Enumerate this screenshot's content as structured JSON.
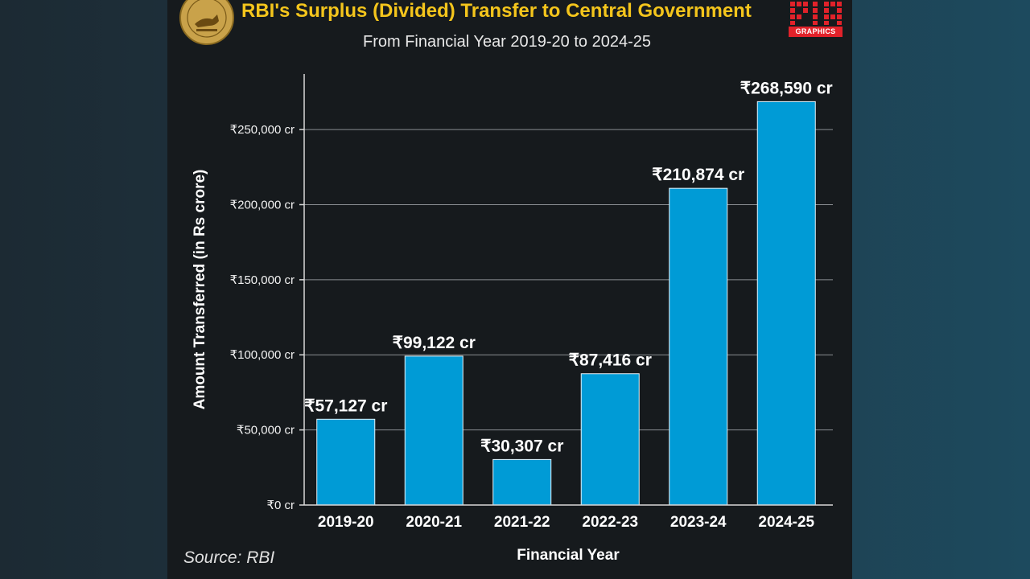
{
  "header": {
    "title": "RBI's Surplus (Divided) Transfer to Central Government",
    "subtitle": "From Financial Year 2019-20 to 2024-25",
    "logo_left": "Reserve Bank of India seal",
    "logo_right_label": "GRAPHICS"
  },
  "footer": {
    "source": "Source: RBI"
  },
  "colors": {
    "bar": "#009bd6",
    "grid": "#8a8e92",
    "title": "#f4c51c",
    "background": "#161a1d"
  },
  "chart_data": {
    "type": "bar",
    "title": "RBI's Surplus (Divided) Transfer to Central Government",
    "subtitle": "From Financial Year 2019-20 to 2024-25",
    "xlabel": "Financial Year",
    "ylabel": "Amount Transferred (in Rs crore)",
    "categories": [
      "2019-20",
      "2020-21",
      "2021-22",
      "2022-23",
      "2023-24",
      "2024-25"
    ],
    "values": [
      57127,
      99122,
      30307,
      87416,
      210874,
      268590
    ],
    "data_labels": [
      "₹57,127 cr",
      "₹99,122 cr",
      "₹30,307 cr",
      "₹87,416 cr",
      "₹210,874 cr",
      "₹268,590 cr"
    ],
    "yticks": [
      0,
      50000,
      100000,
      150000,
      200000,
      250000
    ],
    "ytick_labels": [
      "₹0 cr",
      "₹50,000 cr",
      "₹100,000 cr",
      "₹150,000 cr",
      "₹200,000 cr",
      "₹250,000 cr"
    ],
    "ylim": [
      0,
      287000
    ],
    "grid": true
  }
}
